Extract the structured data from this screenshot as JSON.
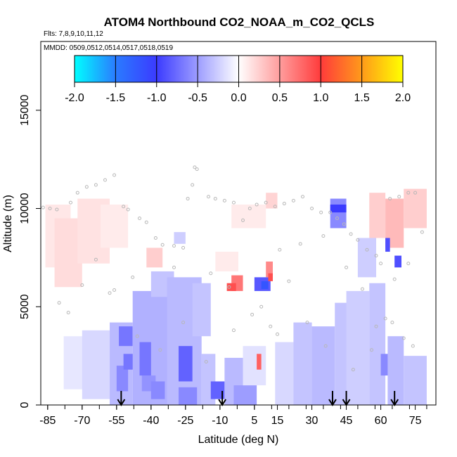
{
  "chart_data": {
    "type": "heatmap",
    "title": "ATOM4 Northbound CO2_NOAA_m_CO2_QCLS",
    "subtitle_flights": "Flts: 7,8,9,10,11,12",
    "subtitle_dates": "MMDD: 0509,0512,0514,0517,0518,0519",
    "xlabel": "Latitude (deg N)",
    "ylabel": "Altitude (m)",
    "xlim": [
      -88,
      84
    ],
    "ylim": [
      0,
      18500
    ],
    "x_ticks": [
      -85,
      -70,
      -55,
      -40,
      -25,
      -10,
      5,
      15,
      30,
      45,
      60,
      75
    ],
    "x_tick_labels": [
      "-85",
      "-70",
      "-55",
      "-40",
      "-25",
      "-10",
      "5",
      "15",
      "30",
      "45",
      "60",
      "75"
    ],
    "y_ticks": [
      0,
      5000,
      10000,
      15000
    ],
    "y_tick_labels": [
      "0",
      "5000",
      "10000",
      "15000"
    ],
    "colorbar": {
      "range": [
        -2.0,
        2.0
      ],
      "tick_values": [
        -2.0,
        -1.5,
        -1.0,
        -0.5,
        0.0,
        0.5,
        1.0,
        1.5,
        2.0
      ],
      "tick_labels": [
        "-2.0",
        "-1.5",
        "-1.0",
        "-0.5",
        "0.0",
        "0.5",
        "1.0",
        "1.5",
        "2.0"
      ],
      "colors": [
        "#00ffff",
        "#2a7bff",
        "#3b3bff",
        "#ffffff",
        "#ff3b3b",
        "#ff9a1a",
        "#ffff00"
      ]
    },
    "cells": [
      {
        "lat": [
          -86,
          -75
        ],
        "alt": [
          7000,
          10200
        ],
        "value": 0.12
      },
      {
        "lat": [
          -82,
          -70
        ],
        "alt": [
          6000,
          9500
        ],
        "value": 0.18
      },
      {
        "lat": [
          -72,
          -58
        ],
        "alt": [
          7200,
          10500
        ],
        "value": 0.15
      },
      {
        "lat": [
          -62,
          -50
        ],
        "alt": [
          8000,
          10200
        ],
        "value": 0.1
      },
      {
        "lat": [
          -42,
          -35
        ],
        "alt": [
          7000,
          8000
        ],
        "value": 0.25
      },
      {
        "lat": [
          -30,
          -25
        ],
        "alt": [
          8200,
          8800
        ],
        "value": -0.25
      },
      {
        "lat": [
          -12,
          -2
        ],
        "alt": [
          6800,
          7800
        ],
        "value": 0.1
      },
      {
        "lat": [
          -5,
          10
        ],
        "alt": [
          9000,
          10200
        ],
        "value": 0.1
      },
      {
        "lat": [
          10,
          15
        ],
        "alt": [
          10000,
          10800
        ],
        "value": 0.22
      },
      {
        "lat": [
          55,
          62
        ],
        "alt": [
          8500,
          10800
        ],
        "value": 0.25
      },
      {
        "lat": [
          62,
          70
        ],
        "alt": [
          8000,
          10500
        ],
        "value": 0.35
      },
      {
        "lat": [
          70,
          80
        ],
        "alt": [
          9000,
          11000
        ],
        "value": 0.25
      },
      {
        "lat": [
          -78,
          -68
        ],
        "alt": [
          800,
          3500
        ],
        "value": -0.12
      },
      {
        "lat": [
          -70,
          -58
        ],
        "alt": [
          300,
          3800
        ],
        "value": -0.2
      },
      {
        "lat": [
          -58,
          -48
        ],
        "alt": [
          0,
          4200
        ],
        "value": -0.35
      },
      {
        "lat": [
          -54,
          -48
        ],
        "alt": [
          3000,
          4000
        ],
        "value": -0.7
      },
      {
        "lat": [
          -55,
          -50
        ],
        "alt": [
          700,
          2000
        ],
        "value": -0.6
      },
      {
        "lat": [
          -52,
          -45
        ],
        "alt": [
          1800,
          2600
        ],
        "value": -0.7
      },
      {
        "lat": [
          -48,
          -32
        ],
        "alt": [
          0,
          5800
        ],
        "value": -0.4
      },
      {
        "lat": [
          -45,
          -40
        ],
        "alt": [
          1500,
          3200
        ],
        "value": -0.7
      },
      {
        "lat": [
          -44,
          -38
        ],
        "alt": [
          700,
          1500
        ],
        "value": -0.55
      },
      {
        "lat": [
          -40,
          -30
        ],
        "alt": [
          5500,
          6800
        ],
        "value": -0.3
      },
      {
        "lat": [
          -40,
          -34
        ],
        "alt": [
          300,
          1200
        ],
        "value": -0.6
      },
      {
        "lat": [
          -33,
          -18
        ],
        "alt": [
          0,
          6500
        ],
        "value": -0.35
      },
      {
        "lat": [
          -28,
          -22
        ],
        "alt": [
          1200,
          3000
        ],
        "value": -0.8
      },
      {
        "lat": [
          -28,
          -20
        ],
        "alt": [
          0,
          900
        ],
        "value": -0.6
      },
      {
        "lat": [
          -22,
          -14
        ],
        "alt": [
          3500,
          6200
        ],
        "value": -0.3
      },
      {
        "lat": [
          -18,
          -12
        ],
        "alt": [
          0,
          2600
        ],
        "value": -0.3
      },
      {
        "lat": [
          -14,
          -8
        ],
        "alt": [
          300,
          1200
        ],
        "value": -0.8
      },
      {
        "lat": [
          -8,
          0
        ],
        "alt": [
          0,
          2400
        ],
        "value": -0.35
      },
      {
        "lat": [
          -4,
          6
        ],
        "alt": [
          0,
          1000
        ],
        "value": -0.5
      },
      {
        "lat": [
          0,
          10
        ],
        "alt": [
          1000,
          3000
        ],
        "value": -0.15
      },
      {
        "lat": [
          6,
          8
        ],
        "alt": [
          1800,
          2600
        ],
        "value": 0.8
      },
      {
        "lat": [
          -5,
          0
        ],
        "alt": [
          5800,
          6600
        ],
        "value": 0.7
      },
      {
        "lat": [
          -7,
          -3
        ],
        "alt": [
          5800,
          6200
        ],
        "value": 0.9
      },
      {
        "lat": [
          5,
          12
        ],
        "alt": [
          5800,
          6500
        ],
        "value": -0.85
      },
      {
        "lat": [
          8,
          11
        ],
        "alt": [
          5900,
          6300
        ],
        "value": -1.2
      },
      {
        "lat": [
          10,
          13
        ],
        "alt": [
          6500,
          7300
        ],
        "value": 0.6
      },
      {
        "lat": [
          11,
          13
        ],
        "alt": [
          6300,
          6700
        ],
        "value": 0.9
      },
      {
        "lat": [
          14,
          22
        ],
        "alt": [
          0,
          3200
        ],
        "value": -0.2
      },
      {
        "lat": [
          22,
          30
        ],
        "alt": [
          0,
          4200
        ],
        "value": -0.3
      },
      {
        "lat": [
          30,
          40
        ],
        "alt": [
          0,
          4000
        ],
        "value": -0.35
      },
      {
        "lat": [
          38,
          45
        ],
        "alt": [
          9000,
          10500
        ],
        "value": -0.6
      },
      {
        "lat": [
          38,
          45
        ],
        "alt": [
          9800,
          10200
        ],
        "value": -1.0
      },
      {
        "lat": [
          40,
          50
        ],
        "alt": [
          0,
          5200
        ],
        "value": -0.3
      },
      {
        "lat": [
          45,
          55
        ],
        "alt": [
          0,
          5800
        ],
        "value": -0.25
      },
      {
        "lat": [
          50,
          58
        ],
        "alt": [
          6500,
          8500
        ],
        "value": -0.25
      },
      {
        "lat": [
          55,
          62
        ],
        "alt": [
          0,
          6200
        ],
        "value": -0.3
      },
      {
        "lat": [
          60,
          64
        ],
        "alt": [
          1500,
          2600
        ],
        "value": -0.6
      },
      {
        "lat": [
          62,
          64
        ],
        "alt": [
          7800,
          8500
        ],
        "value": -0.9
      },
      {
        "lat": [
          63,
          70
        ],
        "alt": [
          0,
          3500
        ],
        "value": -0.35
      },
      {
        "lat": [
          66,
          69
        ],
        "alt": [
          7000,
          7600
        ],
        "value": -0.9
      },
      {
        "lat": [
          70,
          80
        ],
        "alt": [
          0,
          2500
        ],
        "value": -0.3
      }
    ],
    "flight_track_points": [
      [
        -87,
        10050
      ],
      [
        -84,
        10000
      ],
      [
        -81,
        9950
      ],
      [
        -75,
        10300
      ],
      [
        -72,
        10800
      ],
      [
        -68,
        11100
      ],
      [
        -64,
        11200
      ],
      [
        -60,
        11450
      ],
      [
        -56,
        11700
      ],
      [
        -52,
        10100
      ],
      [
        -50,
        9950
      ],
      [
        -45,
        9500
      ],
      [
        -42,
        9300
      ],
      [
        -38,
        8500
      ],
      [
        -35,
        8150
      ],
      [
        -30,
        8100
      ],
      [
        -26,
        8000
      ],
      [
        -24,
        10500
      ],
      [
        -22,
        11200
      ],
      [
        -21,
        12100
      ],
      [
        -20,
        12000
      ],
      [
        -15,
        10600
      ],
      [
        -12,
        10500
      ],
      [
        -8,
        10400
      ],
      [
        -4,
        10300
      ],
      [
        0,
        9400
      ],
      [
        3,
        10000
      ],
      [
        6,
        10200
      ],
      [
        10,
        10300
      ],
      [
        14,
        10100
      ],
      [
        18,
        10250
      ],
      [
        22,
        10400
      ],
      [
        26,
        10600
      ],
      [
        30,
        10000
      ],
      [
        34,
        9800
      ],
      [
        38,
        9800
      ],
      [
        41,
        9500
      ],
      [
        44,
        9200
      ],
      [
        47,
        8700
      ],
      [
        50,
        8400
      ],
      [
        54,
        7900
      ],
      [
        58,
        7600
      ],
      [
        60,
        7200
      ],
      [
        64,
        10500
      ],
      [
        68,
        10600
      ],
      [
        72,
        10800
      ],
      [
        75,
        10800
      ],
      [
        -58,
        5700
      ],
      [
        -56,
        5850
      ],
      [
        -48,
        6500
      ],
      [
        -30,
        7000
      ],
      [
        -14,
        6700
      ],
      [
        -6,
        6000
      ],
      [
        8,
        5000
      ],
      [
        12,
        4000
      ],
      [
        15,
        3600
      ],
      [
        20,
        6300
      ],
      [
        25,
        8200
      ],
      [
        35,
        8600
      ],
      [
        45,
        7000
      ],
      [
        52,
        5900
      ],
      [
        58,
        4000
      ],
      [
        62,
        4400
      ],
      [
        65,
        4200
      ],
      [
        70,
        3400
      ],
      [
        74,
        3000
      ],
      [
        -80,
        5200
      ],
      [
        -76,
        4700
      ],
      [
        -70,
        6100
      ],
      [
        -64,
        7400
      ],
      [
        -46,
        3500
      ],
      [
        -36,
        2800
      ],
      [
        -26,
        4200
      ],
      [
        -16,
        2200
      ],
      [
        -4,
        3800
      ],
      [
        4,
        4600
      ],
      [
        16,
        7900
      ],
      [
        28,
        4200
      ],
      [
        36,
        3000
      ],
      [
        48,
        1800
      ],
      [
        56,
        2800
      ],
      [
        66,
        6400
      ],
      [
        72,
        7200
      ],
      [
        78,
        8800
      ]
    ],
    "arrows_at_latitude": [
      -53,
      -9,
      39,
      45,
      66
    ]
  }
}
